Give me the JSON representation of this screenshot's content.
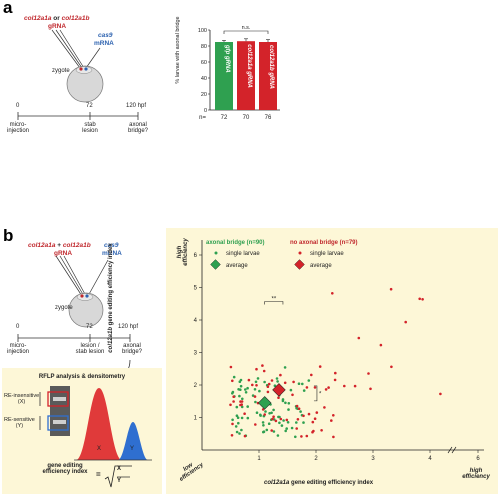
{
  "panel_a": {
    "letter": "a",
    "grna_1": "col12a1a",
    "grna_or": " or ",
    "grna_2": "col12a1b",
    "grna_suffix": "gRNA",
    "cas9_1": "cas9",
    "cas9_2": "mRNA",
    "zygote": "zygote",
    "timeline": {
      "ticks": [
        "0",
        "72",
        "120 hpf"
      ],
      "events": [
        [
          "micro-",
          "injection"
        ],
        [
          "stab",
          "lesion"
        ],
        [
          "axonal",
          "bridge?"
        ]
      ]
    }
  },
  "panel_b": {
    "letter": "b",
    "grna_1": "col12a1a",
    "grna_plus": " + ",
    "grna_2": "col12a1b",
    "grna_suffix": "gRNA",
    "cas9_1": "cas9",
    "cas9_2": "mRNA",
    "zygote": "zygote",
    "timeline": {
      "ticks": [
        "0",
        "72",
        "120 hpf"
      ],
      "events": [
        [
          "micro-",
          "injection"
        ],
        [
          "lesion /",
          "stab lesion"
        ],
        [
          "axonal",
          "bridge?"
        ]
      ]
    },
    "rflp": {
      "title": "RFLP analysis & densitometry",
      "insensitive_1": "RE-insensitive",
      "insensitive_2": "(X)",
      "sensitive_1": "RE-sensitive",
      "sensitive_2": "(Y)",
      "peak_x": "X",
      "peak_y": "Y",
      "formula_1": "gene editing",
      "formula_2": "efficiency index",
      "formula_eq": "=",
      "formula_num": "X",
      "formula_den": "Y"
    }
  },
  "colors": {
    "green": "#2fa050",
    "red": "#d3232a",
    "blue": "#2f6fd0",
    "panel_bg": "#fdf7d7"
  },
  "chart_data": [
    {
      "type": "bar",
      "ylabel": "% larvae with axonal bridge",
      "yticks": [
        "0",
        "20",
        "40",
        "60",
        "80",
        "100"
      ],
      "ylim": [
        0,
        100
      ],
      "categories": [
        "gfp gRNA",
        "col12a1a gRNA",
        "col12a1b gRNA"
      ],
      "values": [
        85,
        86,
        85
      ],
      "errors": [
        2,
        3,
        3
      ],
      "bar_colors": [
        "#2fa050",
        "#d3232a",
        "#d3232a"
      ],
      "n_label": "n=",
      "n_values": [
        "72",
        "70",
        "76"
      ],
      "significance": "n.s."
    },
    {
      "type": "scatter",
      "xlabel_gene": "col12a1a",
      "xlabel_rest": " gene editing efficiency index",
      "ylabel_gene": "col12a1b",
      "ylabel_rest": " gene editing efficiency index",
      "xticks": [
        "1",
        "2",
        "3",
        "4",
        "6"
      ],
      "yticks": [
        "1",
        "2",
        "3",
        "4",
        "5",
        "6"
      ],
      "high_x": [
        "high",
        "efficiency"
      ],
      "high_y": [
        "high",
        "efficiency"
      ],
      "low": [
        "low",
        "efficiency"
      ],
      "legend": {
        "bridge_title": "axonal bridge (n=90)",
        "nobridge_title": "no axonal bridge (n=79)",
        "single": "single larvae",
        "average": "average"
      },
      "sig_x": "**",
      "sig_y": "*",
      "averages": {
        "bridge": [
          1.1,
          1.45
        ],
        "nobridge": [
          1.35,
          1.85
        ]
      }
    }
  ]
}
